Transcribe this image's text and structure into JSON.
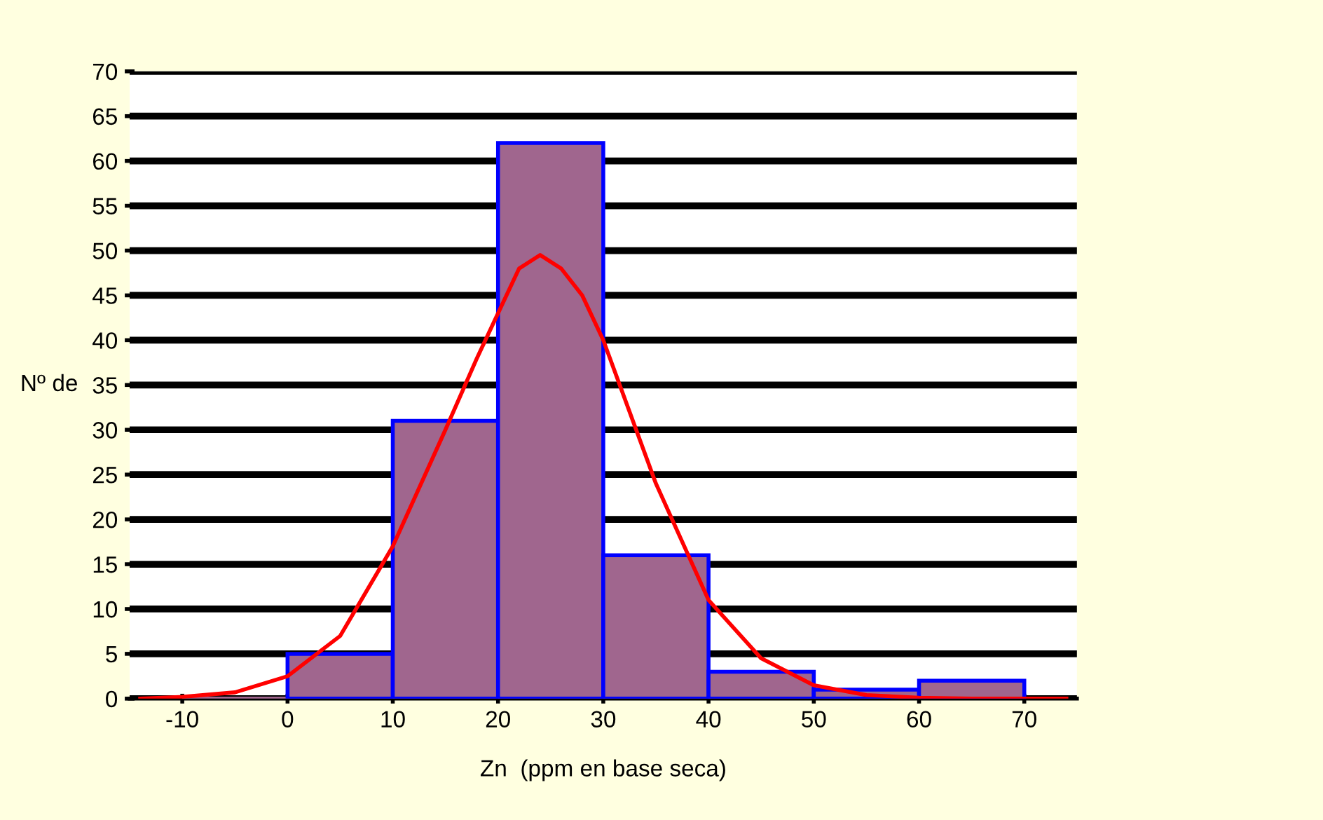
{
  "chart_data": {
    "type": "histogram",
    "xlabel": "Zn  (ppm en base seca)",
    "ylabel": "Nº de",
    "bins": [
      -10,
      0,
      10,
      20,
      30,
      40,
      50,
      60,
      70
    ],
    "series": [
      {
        "color": "#a0668e",
        "values": [
          0,
          5,
          31,
          62,
          16,
          3,
          1,
          2
        ]
      },
      {
        "type": "line",
        "color": "#ff0000",
        "x": [
          -14,
          -10,
          -5,
          0,
          5,
          10,
          15,
          18,
          20,
          22,
          24,
          26,
          28,
          30,
          35,
          40,
          45,
          50,
          55,
          60,
          65,
          70,
          74
        ],
        "values": [
          0,
          0.2,
          0.7,
          2.5,
          7,
          17,
          30,
          38,
          43,
          48,
          49.5,
          48,
          45,
          40,
          24,
          11,
          4.5,
          1.5,
          0.4,
          0.1,
          0,
          0,
          0
        ]
      }
    ],
    "xlim": [
      -15,
      75
    ],
    "xticks": [
      -10,
      0,
      10,
      20,
      30,
      40,
      50,
      60,
      70
    ],
    "ylim": [
      0,
      70
    ],
    "yticks": [
      0,
      5,
      10,
      15,
      20,
      25,
      30,
      35,
      40,
      45,
      50,
      55,
      60,
      65,
      70
    ],
    "grid": "y",
    "marker": "none",
    "line_style": "solid"
  }
}
